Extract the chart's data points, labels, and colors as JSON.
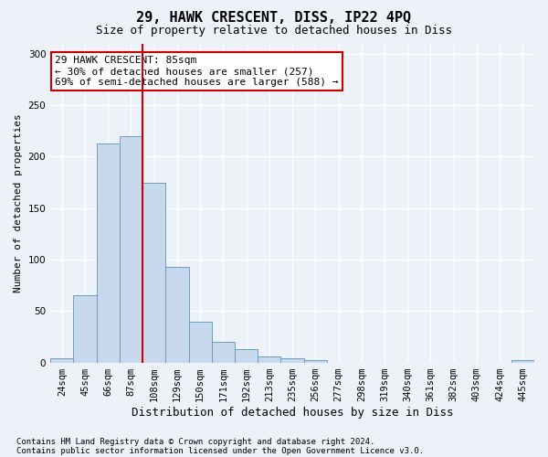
{
  "title": "29, HAWK CRESCENT, DISS, IP22 4PQ",
  "subtitle": "Size of property relative to detached houses in Diss",
  "xlabel": "Distribution of detached houses by size in Diss",
  "ylabel": "Number of detached properties",
  "categories": [
    "24sqm",
    "45sqm",
    "66sqm",
    "87sqm",
    "108sqm",
    "129sqm",
    "150sqm",
    "171sqm",
    "192sqm",
    "213sqm",
    "235sqm",
    "256sqm",
    "277sqm",
    "298sqm",
    "319sqm",
    "340sqm",
    "361sqm",
    "382sqm",
    "403sqm",
    "424sqm",
    "445sqm"
  ],
  "values": [
    4,
    65,
    213,
    220,
    175,
    93,
    40,
    20,
    13,
    6,
    4,
    2,
    0,
    0,
    0,
    0,
    0,
    0,
    0,
    0,
    2
  ],
  "bar_color": "#c8d9ed",
  "bar_edge_color": "#6a9fc0",
  "vline_x_index": 3.5,
  "vline_color": "#cc0000",
  "annotation_text": "29 HAWK CRESCENT: 85sqm\n← 30% of detached houses are smaller (257)\n69% of semi-detached houses are larger (588) →",
  "annotation_box_facecolor": "#ffffff",
  "annotation_box_edgecolor": "#cc0000",
  "ylim": [
    0,
    310
  ],
  "yticks": [
    0,
    50,
    100,
    150,
    200,
    250,
    300
  ],
  "footer1": "Contains HM Land Registry data © Crown copyright and database right 2024.",
  "footer2": "Contains public sector information licensed under the Open Government Licence v3.0.",
  "background_color": "#edf1f8",
  "grid_color": "#ffffff",
  "title_fontsize": 11,
  "subtitle_fontsize": 9,
  "ylabel_fontsize": 8,
  "xlabel_fontsize": 9,
  "tick_fontsize": 7.5,
  "annotation_fontsize": 8,
  "footer_fontsize": 6.5
}
